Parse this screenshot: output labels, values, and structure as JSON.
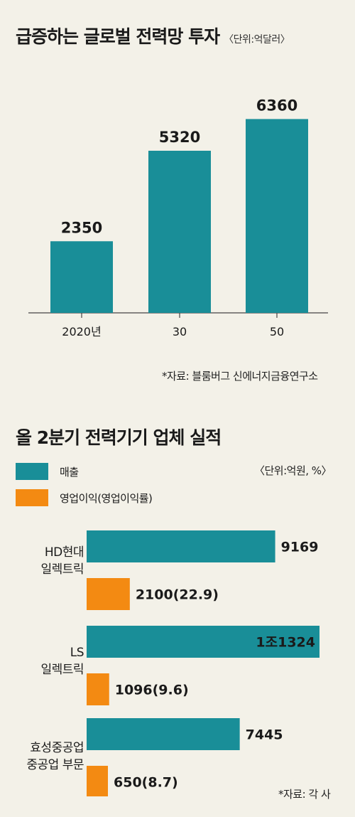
{
  "colors": {
    "teal": "#198e98",
    "orange": "#f38a12",
    "text": "#1a1a1a",
    "axis": "#444444"
  },
  "chart_data": [
    {
      "type": "bar",
      "title": "급증하는 글로벌 전력망 투자",
      "unit_note": "〈단위:억달러〉",
      "categories": [
        "2020년",
        "30",
        "50"
      ],
      "values": [
        2350,
        5320,
        6360
      ],
      "value_labels": [
        "2350",
        "5320",
        "6360"
      ],
      "ylim": [
        0,
        7000
      ],
      "source": "*자료: 블룸버그 신에너지금융연구소"
    },
    {
      "type": "bar",
      "orientation": "horizontal",
      "title": "올 2분기 전력기기 업체 실적",
      "unit_note": "〈단위:억원, %〉",
      "categories": [
        "HD현대\n일렉트릭",
        "LS\n일렉트릭",
        "효성중공업\n중공업 부문"
      ],
      "category_lines": [
        [
          "HD현대",
          "일렉트릭"
        ],
        [
          "LS",
          "일렉트릭"
        ],
        [
          "효성중공업",
          "중공업 부문"
        ]
      ],
      "series": [
        {
          "name": "매출",
          "values": [
            9169,
            11324,
            7445
          ],
          "value_labels": [
            "9169",
            "1조1324",
            "7445"
          ]
        },
        {
          "name": "영업이익(영업이익률)",
          "values": [
            2100,
            1096,
            650
          ],
          "margins": [
            22.9,
            9.6,
            8.7
          ],
          "value_labels": [
            "2100(22.9)",
            "1096(9.6)",
            "650(8.7)"
          ]
        }
      ],
      "source": "*자료: 각 사"
    }
  ]
}
